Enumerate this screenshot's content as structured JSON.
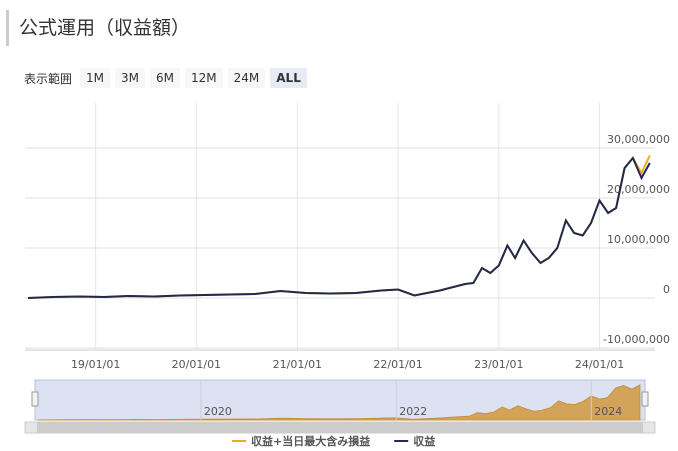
{
  "header": {
    "title": "公式運用（収益額）"
  },
  "range_selector": {
    "label": "表示範囲",
    "buttons": [
      "1M",
      "3M",
      "6M",
      "12M",
      "24M",
      "ALL"
    ],
    "selected": "ALL"
  },
  "chart_data": {
    "type": "line",
    "x": [
      "18/05/01",
      "18/08/01",
      "18/11/01",
      "19/02/01",
      "19/05/01",
      "19/08/01",
      "19/11/01",
      "20/02/01",
      "20/05/01",
      "20/08/01",
      "20/11/01",
      "21/02/01",
      "21/05/01",
      "21/08/01",
      "21/11/01",
      "22/01/01",
      "22/03/01",
      "22/06/01",
      "22/09/01",
      "22/10/01",
      "22/11/01",
      "22/12/01",
      "23/01/01",
      "23/02/01",
      "23/03/01",
      "23/04/01",
      "23/05/01",
      "23/06/01",
      "23/07/01",
      "23/08/01",
      "23/09/01",
      "23/10/01",
      "23/11/01",
      "23/12/01",
      "24/01/01",
      "24/02/01",
      "24/03/01",
      "24/04/01",
      "24/05/01",
      "24/06/01",
      "24/07/01"
    ],
    "series": [
      {
        "name": "収益+当日最大含み損益",
        "color": "#f5a623",
        "values": [
          0,
          200000,
          300000,
          200000,
          400000,
          300000,
          500000,
          600000,
          700000,
          800000,
          1400000,
          1000000,
          900000,
          1000000,
          1500000,
          1700000,
          500000,
          1500000,
          2800000,
          3000000,
          6000000,
          5000000,
          6500000,
          10500000,
          8000000,
          11500000,
          9000000,
          7000000,
          8000000,
          10000000,
          15500000,
          13000000,
          12500000,
          15000000,
          19500000,
          17000000,
          18000000,
          26000000,
          28000000,
          25000000,
          28500000
        ]
      },
      {
        "name": "収益",
        "color": "#1f2a4e",
        "values": [
          0,
          200000,
          300000,
          200000,
          400000,
          300000,
          500000,
          600000,
          700000,
          800000,
          1400000,
          1000000,
          900000,
          1000000,
          1500000,
          1700000,
          500000,
          1500000,
          2800000,
          3000000,
          6000000,
          5000000,
          6500000,
          10500000,
          8000000,
          11500000,
          9000000,
          7000000,
          8000000,
          10000000,
          15500000,
          13000000,
          12500000,
          15000000,
          19500000,
          17000000,
          18000000,
          26000000,
          28000000,
          24000000,
          27000000
        ]
      }
    ],
    "xlim": [
      "18/04/20",
      "24/07/20"
    ],
    "xticks": [
      "19/01/01",
      "20/01/01",
      "21/01/01",
      "22/01/01",
      "23/01/01",
      "24/01/01"
    ],
    "ylim": [
      -10400000,
      39000000
    ],
    "yticks": [
      {
        "value": -10000000,
        "label": "-10,000,000"
      },
      0,
      {
        "value": 10000000,
        "label": "10,000,000"
      },
      {
        "value": 20000000,
        "label": "20,000,000"
      },
      {
        "value": 30000000,
        "label": "30,000,000"
      }
    ],
    "grid": true,
    "navigator_ticks": [
      {
        "value": "20/01/01",
        "label": "2020"
      },
      {
        "value": "22/01/01",
        "label": "2022"
      },
      {
        "value": "24/01/01",
        "label": "2024"
      }
    ],
    "legend": "bottom"
  }
}
